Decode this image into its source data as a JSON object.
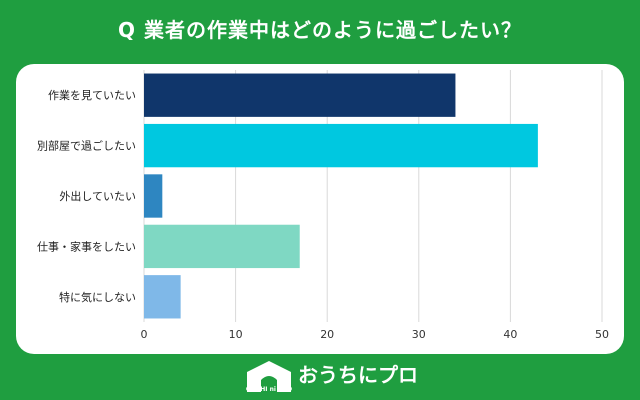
{
  "title": "Q 業者の作業中はどのように過ごしたい？",
  "brand": {
    "logo_mark_text": "OUCHI ni PRO",
    "name": "おうちにプロ"
  },
  "colors": {
    "background": "#1f9e40",
    "card": "#ffffff",
    "grid": "#d9d9d9"
  },
  "chart_data": {
    "type": "bar",
    "orientation": "horizontal",
    "title": "",
    "xlabel": "",
    "ylabel": "",
    "categories": [
      "作業を見ていたい",
      "別部屋で過ごしたい",
      "外出していたい",
      "仕事・家事をしたい",
      "特に気にしない"
    ],
    "values": [
      34,
      43,
      2,
      17,
      4
    ],
    "colors": [
      "#10366b",
      "#00c8e0",
      "#2e86c1",
      "#7fd8c3",
      "#7fb8e8"
    ],
    "xlim": [
      0,
      50
    ],
    "xticks": [
      0,
      10,
      20,
      30,
      40,
      50
    ],
    "grid": true
  }
}
